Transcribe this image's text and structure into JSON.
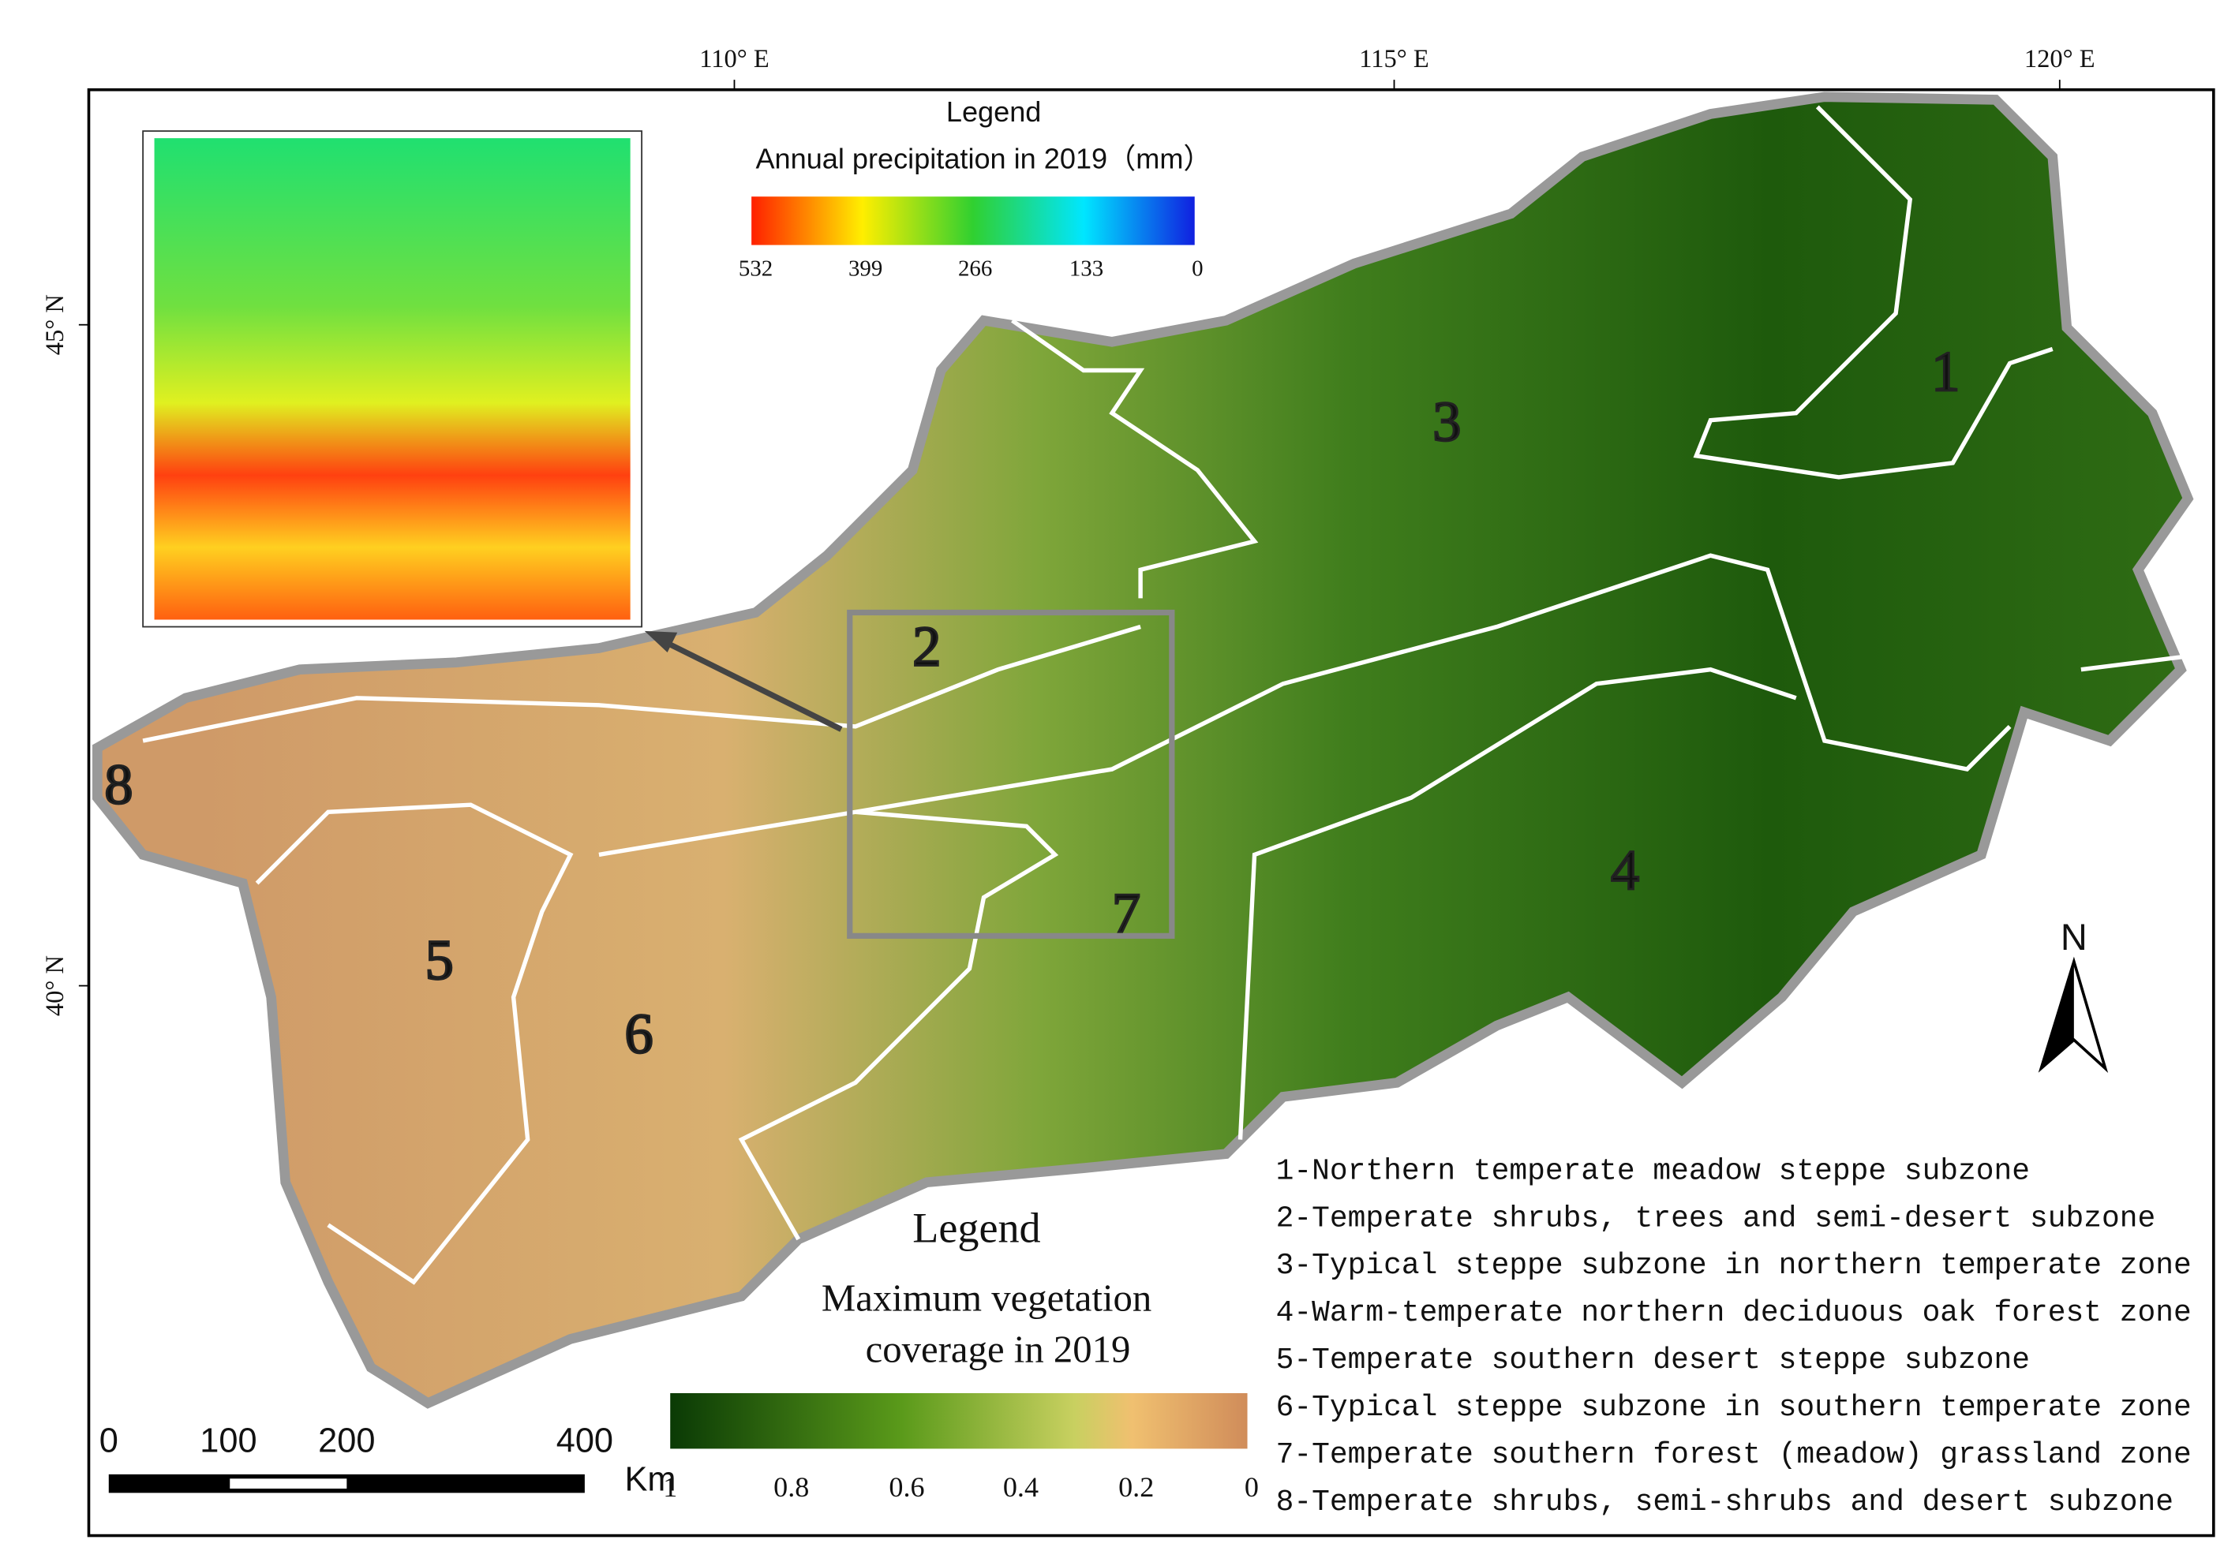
{
  "map": {
    "longitude_labels": [
      "110°  E",
      "115°  E",
      "120°  E"
    ],
    "latitude_labels": [
      "45°  N",
      "40°  N"
    ],
    "precipitation_legend": {
      "title": "Legend",
      "subtitle": "Annual precipitation in 2019（mm）",
      "ticks": [
        532,
        399,
        266,
        133,
        0
      ]
    },
    "zone_numbers": [
      "1",
      "2",
      "3",
      "4",
      "5",
      "6",
      "7",
      "8"
    ],
    "north_arrow": "N",
    "vegetation_legend": {
      "title": "Legend",
      "subtitle_lines": [
        "Maximum vegetation",
        "coverage in 2019"
      ],
      "ticks": [
        1,
        0.8,
        0.6,
        0.4,
        0.2,
        0
      ]
    },
    "scale_bar": {
      "ticks": [
        0,
        100,
        200,
        400
      ],
      "unit": "Km"
    },
    "zone_list": [
      "1-Northern temperate meadow steppe subzone",
      "2-Temperate shrubs, trees and semi-desert subzone",
      "3-Typical steppe subzone in northern temperate zone",
      "4-Warm-temperate northern deciduous oak forest zone",
      "5-Temperate southern desert steppe subzone",
      "6-Typical steppe subzone in southern temperate zone",
      "7-Temperate southern forest (meadow) grassland zone",
      "8-Temperate shrubs, semi-shrubs and desert subzone"
    ]
  }
}
